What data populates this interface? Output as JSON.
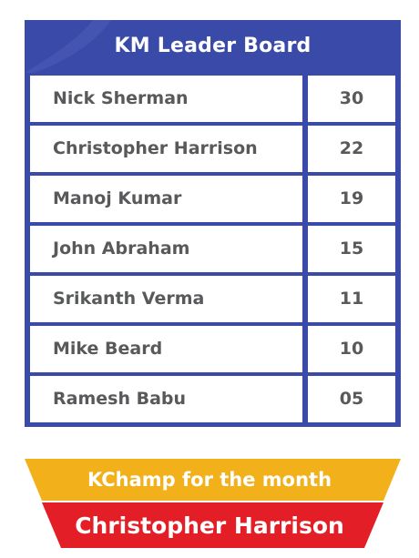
{
  "board": {
    "title": "KM Leader Board",
    "rows": [
      {
        "name": "Nick Sherman",
        "score": "30"
      },
      {
        "name": "Christopher Harrison",
        "score": "22"
      },
      {
        "name": "Manoj Kumar",
        "score": "19"
      },
      {
        "name": "John Abraham",
        "score": "15"
      },
      {
        "name": "Srikanth Verma",
        "score": "11"
      },
      {
        "name": "Mike Beard",
        "score": "10"
      },
      {
        "name": "Ramesh Babu",
        "score": "05"
      }
    ]
  },
  "champion": {
    "label": "KChamp for the month",
    "name": "Christopher Harrison"
  },
  "colors": {
    "board_blue": "#3a4aa8",
    "text_gray": "#58595b",
    "banner_yellow": "#f2b11b",
    "banner_red": "#e31e26"
  }
}
